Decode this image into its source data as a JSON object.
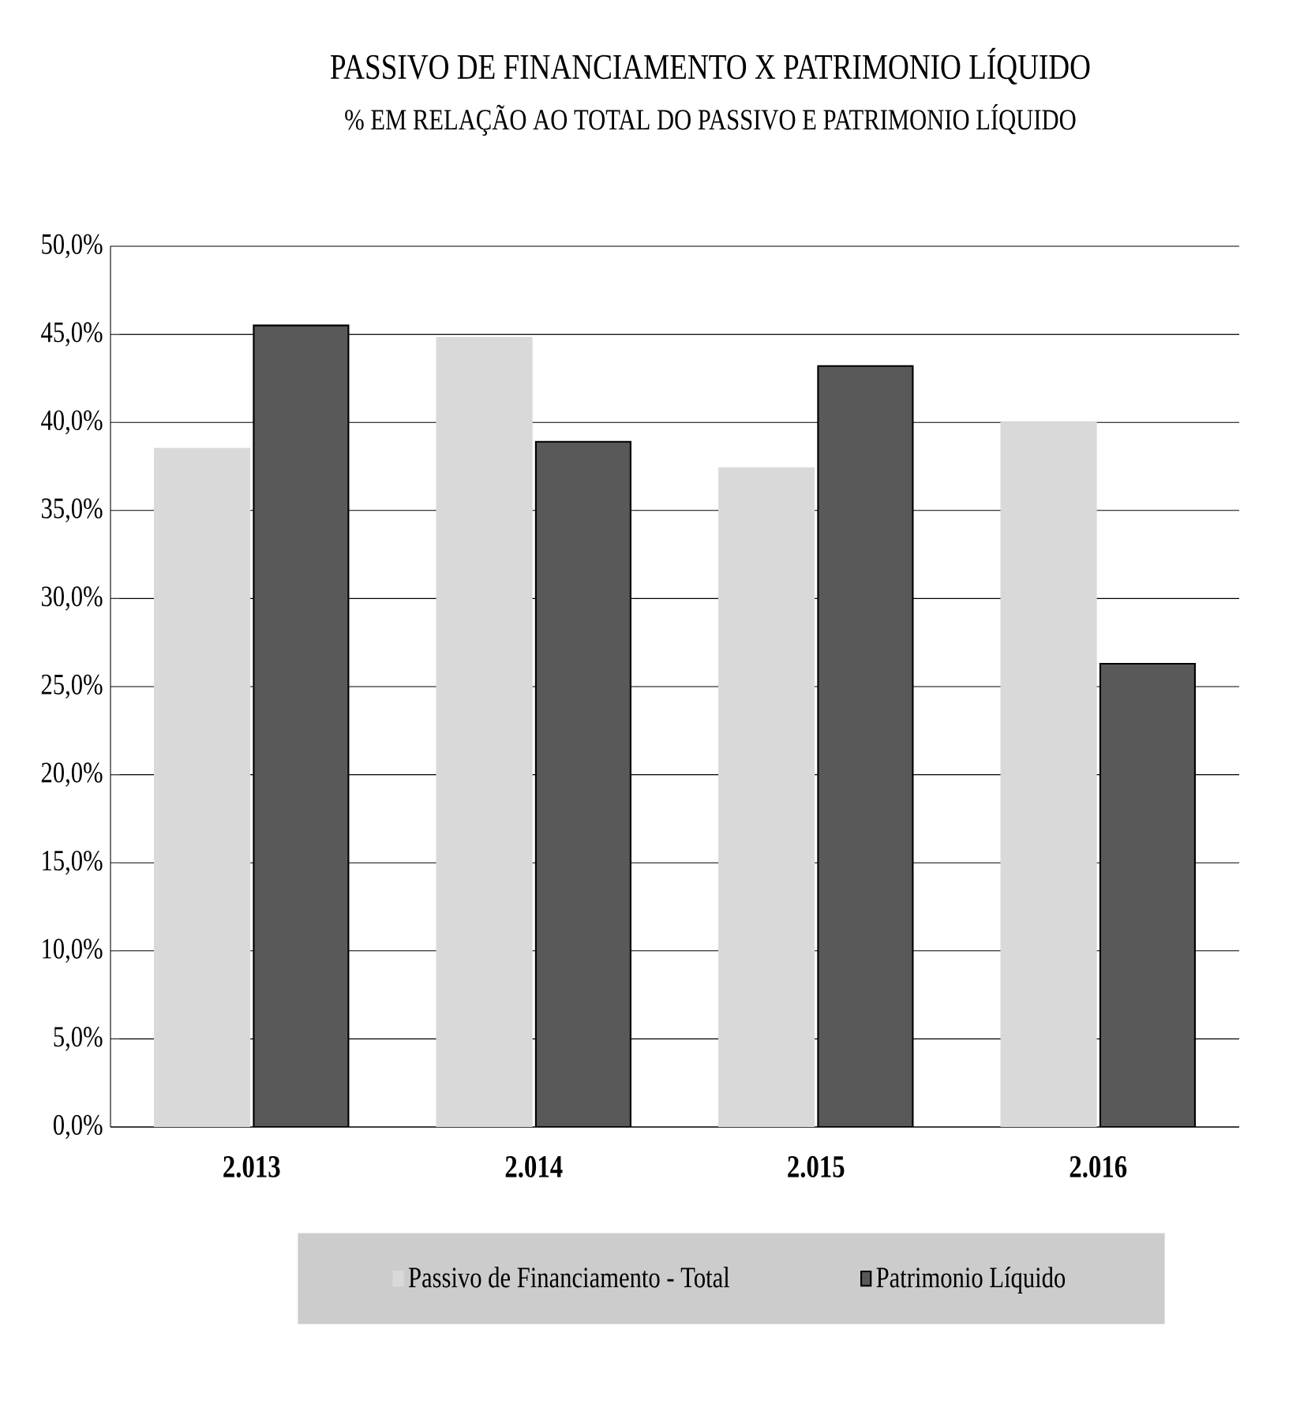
{
  "chart_data": {
    "type": "bar",
    "title": "PASSIVO DE FINANCIAMENTO X PATRIMONIO LÍQUIDO",
    "subtitle": "% EM RELAÇÃO AO TOTAL DO PASSIVO E PATRIMONIO LÍQUIDO",
    "categories": [
      "2.013",
      "2.014",
      "2.015",
      "2.016"
    ],
    "series": [
      {
        "name": "Passivo de Financiamento - Total",
        "color": "#d9d9d9",
        "values": [
          38.5,
          44.8,
          37.4,
          40.0
        ]
      },
      {
        "name": "Patrimonio Líquido",
        "color": "#595959",
        "values": [
          45.5,
          38.9,
          43.2,
          26.3
        ]
      }
    ],
    "ylim": [
      0,
      50
    ],
    "yticks": [
      {
        "value": 0,
        "label": "0,0%"
      },
      {
        "value": 5,
        "label": "5,0%"
      },
      {
        "value": 10,
        "label": "10,0%"
      },
      {
        "value": 15,
        "label": "15,0%"
      },
      {
        "value": 20,
        "label": "20,0%"
      },
      {
        "value": 25,
        "label": "25,0%"
      },
      {
        "value": 30,
        "label": "30,0%"
      },
      {
        "value": 35,
        "label": "35,0%"
      },
      {
        "value": 40,
        "label": "40,0%"
      },
      {
        "value": 45,
        "label": "45,0%"
      },
      {
        "value": 50,
        "label": "50,0%"
      }
    ],
    "grid": "y",
    "legend": "bottom"
  }
}
